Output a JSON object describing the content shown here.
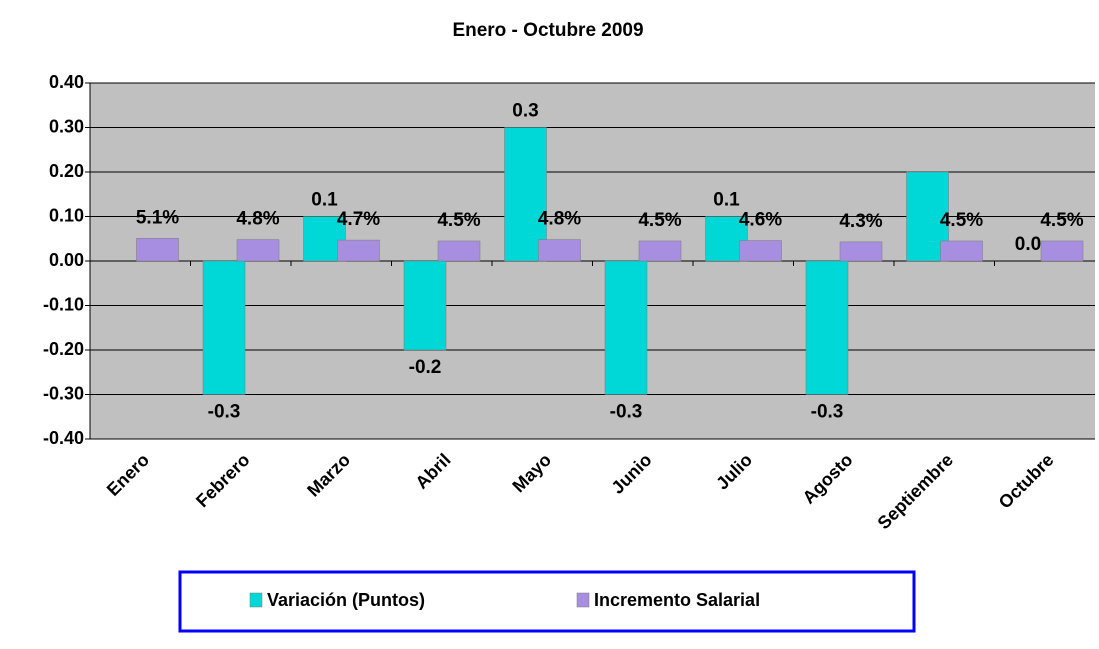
{
  "chart_data": {
    "type": "bar",
    "title": "Enero - Octubre 2009",
    "categories": [
      "Enero",
      "Febrero",
      "Marzo",
      "Abril",
      "Mayo",
      "Junio",
      "Julio",
      "Agosto",
      "Septiembre",
      "Octubre"
    ],
    "series": [
      {
        "name": "Variación (Puntos)",
        "color": "#00d8d8",
        "values": [
          null,
          -0.3,
          0.1,
          -0.2,
          0.3,
          -0.3,
          0.1,
          -0.3,
          0.2,
          0
        ],
        "value_labels": [
          null,
          "-0.3",
          "0.1",
          "-0.2",
          "0.3",
          "-0.3",
          "0.1",
          "-0.3",
          null,
          "0.0"
        ]
      },
      {
        "name": "Incremento Salarial",
        "color": "#a78ee0",
        "values": [
          0.051,
          0.048,
          0.047,
          0.045,
          0.048,
          0.045,
          0.046,
          0.043,
          0.045,
          0.045
        ],
        "value_labels": [
          "5.1%",
          "4.8%",
          "4.7%",
          "4.5%",
          "4.8%",
          "4.5%",
          "4.6%",
          "4.3%",
          "4.5%",
          "4.5%"
        ]
      }
    ],
    "ylim": [
      -0.4,
      0.4
    ],
    "yticks": [
      {
        "value": -0.4,
        "label": "-0.40"
      },
      {
        "value": -0.3,
        "label": "-0.30"
      },
      {
        "value": -0.2,
        "label": "-0.20"
      },
      {
        "value": -0.1,
        "label": "-0.10"
      },
      {
        "value": 0,
        "label": "0.00"
      },
      {
        "value": 0.1,
        "label": "0.10"
      },
      {
        "value": 0.2,
        "label": "0.20"
      },
      {
        "value": 0.3,
        "label": "0.30"
      },
      {
        "value": 0.4,
        "label": "0.40"
      }
    ],
    "grid": true
  }
}
